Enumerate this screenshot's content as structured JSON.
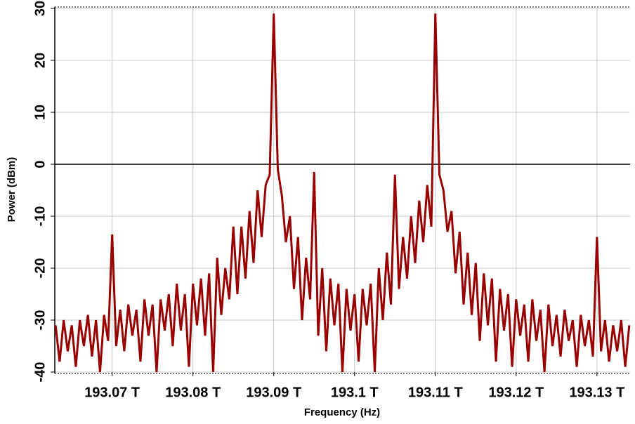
{
  "chart_data": {
    "type": "line",
    "xlabel": "Frequency (Hz)",
    "ylabel": "Power (dBm)",
    "x": [
      193.063,
      193.0635,
      193.064,
      193.0645,
      193.065,
      193.0655,
      193.066,
      193.0665,
      193.067,
      193.0675,
      193.068,
      193.0685,
      193.069,
      193.0695,
      193.07,
      193.0705,
      193.071,
      193.0715,
      193.072,
      193.0725,
      193.073,
      193.0735,
      193.074,
      193.0745,
      193.075,
      193.0755,
      193.076,
      193.0765,
      193.077,
      193.0775,
      193.078,
      193.0785,
      193.079,
      193.0795,
      193.08,
      193.0805,
      193.081,
      193.0815,
      193.082,
      193.0825,
      193.083,
      193.0835,
      193.084,
      193.0845,
      193.085,
      193.0855,
      193.086,
      193.0865,
      193.087,
      193.0875,
      193.088,
      193.0885,
      193.089,
      193.0895,
      193.09,
      193.0905,
      193.091,
      193.0915,
      193.092,
      193.0925,
      193.093,
      193.0935,
      193.094,
      193.0945,
      193.095,
      193.0955,
      193.096,
      193.0965,
      193.097,
      193.0975,
      193.098,
      193.0985,
      193.099,
      193.0995,
      193.1,
      193.1005,
      193.101,
      193.1015,
      193.102,
      193.1025,
      193.103,
      193.1035,
      193.104,
      193.1045,
      193.105,
      193.1055,
      193.106,
      193.1065,
      193.107,
      193.1075,
      193.108,
      193.1085,
      193.109,
      193.1095,
      193.11,
      193.1105,
      193.111,
      193.1115,
      193.112,
      193.1125,
      193.113,
      193.1135,
      193.114,
      193.1145,
      193.115,
      193.1155,
      193.116,
      193.1165,
      193.117,
      193.1175,
      193.118,
      193.1185,
      193.119,
      193.1195,
      193.12,
      193.1205,
      193.121,
      193.1215,
      193.122,
      193.1225,
      193.123,
      193.1235,
      193.124,
      193.1245,
      193.125,
      193.1255,
      193.126,
      193.1265,
      193.127,
      193.1275,
      193.128,
      193.1285,
      193.129,
      193.1295,
      193.13,
      193.1305,
      193.131,
      193.1315,
      193.132,
      193.1325,
      193.133,
      193.1335,
      193.134
    ],
    "series": [
      {
        "color": "#990000",
        "values": [
          -31,
          -38,
          -30,
          -36,
          -31,
          -39,
          -30,
          -35,
          -29,
          -37,
          -30,
          -40,
          -29,
          -34,
          -13.5,
          -35,
          -28,
          -36,
          -27,
          -33,
          -28,
          -38,
          -26,
          -33,
          -27,
          -40,
          -26,
          -32,
          -25,
          -35,
          -23,
          -32,
          -25,
          -39,
          -23,
          -31,
          -22,
          -33,
          -21,
          -40,
          -18,
          -29,
          -20,
          -26,
          -12,
          -25,
          -12,
          -22,
          -9,
          -19,
          -5,
          -14,
          -4,
          -2,
          29,
          -1,
          -6,
          -15,
          -10,
          -24,
          -14,
          -30,
          -18,
          -26,
          -1.5,
          -33,
          -20,
          -36,
          -22,
          -31,
          -23,
          -40,
          -24,
          -32,
          -25,
          -38,
          -24,
          -31,
          -23,
          -40,
          -20,
          -30,
          -17,
          -27,
          -2,
          -24,
          -14,
          -22,
          -10,
          -19,
          -7,
          -15,
          -4,
          -12,
          29,
          -2,
          -5,
          -13,
          -9,
          -21,
          -13,
          -27,
          -17,
          -29,
          -19,
          -34,
          -21,
          -31,
          -22,
          -38,
          -24,
          -32,
          -25,
          -39,
          -26,
          -33,
          -27,
          -38,
          -26,
          -34,
          -28,
          -40,
          -27,
          -35,
          -29,
          -37,
          -28,
          -34,
          -30,
          -39,
          -29,
          -35,
          -30,
          -37,
          -14,
          -36,
          -30,
          -38,
          -31,
          -36,
          -30,
          -39,
          -31
        ]
      }
    ],
    "xlim": [
      193.0629,
      193.1341
    ],
    "xticks": [
      {
        "value": 193.07,
        "label": "193.07 T"
      },
      {
        "value": 193.08,
        "label": "193.08 T"
      },
      {
        "value": 193.09,
        "label": "193.09 T"
      },
      {
        "value": 193.1,
        "label": "193.1 T"
      },
      {
        "value": 193.11,
        "label": "193.11 T"
      },
      {
        "value": 193.12,
        "label": "193.12 T"
      },
      {
        "value": 193.13,
        "label": "193.13 T"
      }
    ],
    "ylim": [
      -40,
      30
    ],
    "yticks": [
      30,
      20,
      10,
      0,
      -10,
      -20,
      -30,
      -40
    ],
    "grid": true
  }
}
